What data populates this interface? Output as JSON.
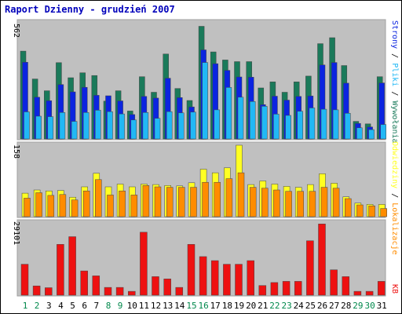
{
  "title": "Raport Dzienny -  grudzień 2007",
  "colors": {
    "title": "#0000bb",
    "panel_bg": "#c0c0c0",
    "frame": "#a0a0a0",
    "wizyty": "#1a7a5a",
    "strony": "#0b24e0",
    "pliki": "#21b8f5",
    "lokalizacje": "#ff8c00",
    "odwiedziny": "#ffff22",
    "kb": "#ee1111",
    "weekday_label": "#000000",
    "weekend_label": "#00884b"
  },
  "chart_data": [
    {
      "type": "bar",
      "panel": "top",
      "ymax_label": "562",
      "ylim": [
        0,
        562
      ],
      "categories": [
        "1",
        "2",
        "3",
        "4",
        "5",
        "6",
        "7",
        "8",
        "9",
        "10",
        "11",
        "12",
        "13",
        "14",
        "15",
        "16",
        "17",
        "18",
        "19",
        "20",
        "21",
        "22",
        "23",
        "24",
        "25",
        "26",
        "27",
        "28",
        "29",
        "30",
        "31"
      ],
      "legend": [
        {
          "label": "Wywołania",
          "color": "#1a7a5a"
        },
        {
          "label": "Pliki",
          "color": "#21b8f5"
        },
        {
          "label": "Strony",
          "color": "#0b24e0"
        }
      ],
      "series": [
        {
          "name": "Wywołania",
          "values": [
            425,
            290,
            233,
            369,
            296,
            320,
            307,
            183,
            233,
            135,
            301,
            226,
            411,
            244,
            186,
            545,
            421,
            382,
            374,
            374,
            247,
            276,
            226,
            276,
            304,
            461,
            490,
            355,
            85,
            73,
            301
          ]
        },
        {
          "name": "Strony",
          "values": [
            371,
            202,
            185,
            263,
            228,
            250,
            211,
            209,
            184,
            118,
            206,
            198,
            294,
            200,
            155,
            431,
            364,
            332,
            300,
            299,
            166,
            207,
            188,
            206,
            208,
            358,
            370,
            270,
            75,
            58,
            271
          ]
        },
        {
          "name": "Pliki",
          "values": [
            131,
            110,
            108,
            128,
            85,
            128,
            139,
            132,
            121,
            92,
            128,
            100,
            132,
            126,
            130,
            370,
            141,
            249,
            202,
            181,
            158,
            120,
            114,
            134,
            150,
            144,
            141,
            124,
            54,
            45,
            70
          ]
        }
      ],
      "grid": false
    },
    {
      "type": "bar",
      "panel": "middle",
      "ymax_label": "158",
      "ylim": [
        0,
        158
      ],
      "categories": [
        "1",
        "2",
        "3",
        "4",
        "5",
        "6",
        "7",
        "8",
        "9",
        "10",
        "11",
        "12",
        "13",
        "14",
        "15",
        "16",
        "17",
        "18",
        "19",
        "20",
        "21",
        "22",
        "23",
        "24",
        "25",
        "26",
        "27",
        "28",
        "29",
        "30",
        "31"
      ],
      "legend": [
        {
          "label": "Odwiedziny",
          "color": "#ffff22"
        },
        {
          "label": "Lokalizacje",
          "color": "#ff8c00"
        }
      ],
      "series": [
        {
          "name": "Odwiedziny",
          "values": [
            52,
            59,
            57,
            58,
            43,
            66,
            96,
            66,
            72,
            66,
            72,
            71,
            69,
            68,
            75,
            105,
            97,
            108,
            158,
            71,
            79,
            72,
            67,
            65,
            71,
            95,
            74,
            44,
            30,
            27,
            27
          ]
        },
        {
          "name": "Lokalizacje",
          "values": [
            41,
            53,
            47,
            49,
            37,
            57,
            82,
            48,
            57,
            48,
            69,
            66,
            65,
            65,
            65,
            76,
            76,
            84,
            97,
            65,
            63,
            59,
            56,
            56,
            56,
            65,
            63,
            40,
            26,
            24,
            18
          ]
        }
      ],
      "grid": false
    },
    {
      "type": "bar",
      "panel": "bottom",
      "ymax_label": "29101",
      "ylim": [
        0,
        29101
      ],
      "categories": [
        "1",
        "2",
        "3",
        "4",
        "5",
        "6",
        "7",
        "8",
        "9",
        "10",
        "11",
        "12",
        "13",
        "14",
        "15",
        "16",
        "17",
        "18",
        "19",
        "20",
        "21",
        "22",
        "23",
        "24",
        "25",
        "26",
        "27",
        "28",
        "29",
        "30",
        "31"
      ],
      "legend": [
        {
          "label": "KB",
          "color": "#ee1111"
        }
      ],
      "series": [
        {
          "name": "KB",
          "values": [
            12456,
            3738,
            3009,
            20453,
            23551,
            9784,
            7783,
            3144,
            3144,
            1553,
            25373,
            7454,
            6542,
            3144,
            20453,
            15530,
            13920,
            12456,
            12456,
            13920,
            3877,
            5083,
            5579,
            5579,
            21915,
            28700,
            10212,
            7454,
            1553,
            1553,
            5579
          ]
        }
      ],
      "grid": false
    }
  ],
  "weekends": [
    "1",
    "2",
    "8",
    "9",
    "15",
    "16",
    "22",
    "23",
    "29",
    "30"
  ]
}
